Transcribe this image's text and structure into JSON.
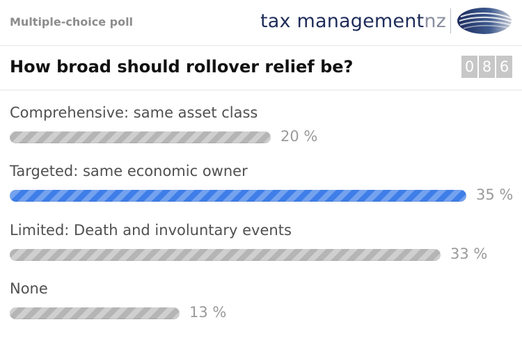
{
  "header": {
    "poll_type": "Multiple-choice poll",
    "brand": {
      "name": "tax management",
      "suffix": "nz",
      "logo_icon": "swoosh-logo-icon"
    }
  },
  "question": {
    "text": "How broad should rollover relief be?",
    "vote_count_digits": [
      "0",
      "8",
      "6"
    ]
  },
  "options": [
    {
      "label": "Comprehensive: same asset class",
      "percent": 20,
      "percent_text": "20 %",
      "selected": false
    },
    {
      "label": "Targeted: same economic owner",
      "percent": 35,
      "percent_text": "35 %",
      "selected": true
    },
    {
      "label": "Limited: Death and involuntary events",
      "percent": 33,
      "percent_text": "33 %",
      "selected": false
    },
    {
      "label": "None",
      "percent": 13,
      "percent_text": "13 %",
      "selected": false
    }
  ],
  "colors": {
    "selected_bar": "#3f7ee8",
    "bar": "#b5b5b5",
    "brand_text": "#1f2d5a"
  }
}
